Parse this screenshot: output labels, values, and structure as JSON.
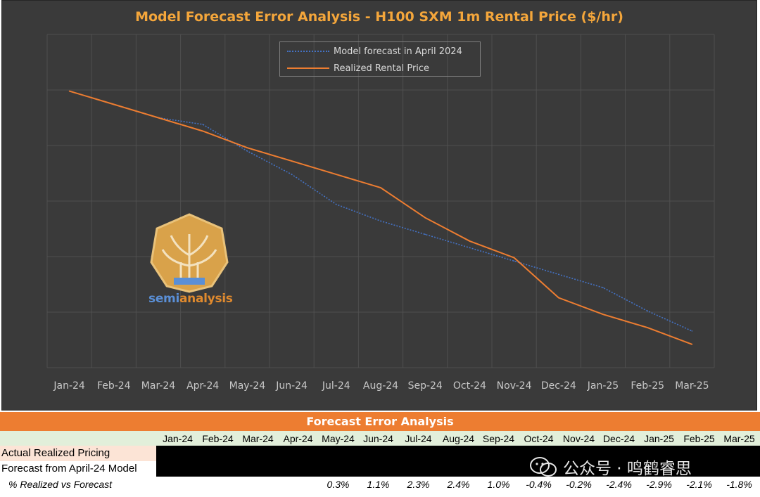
{
  "chart_data": {
    "type": "line",
    "title": "Model Forecast Error Analysis - H100 SXM 1m Rental Price ($/hr)",
    "categories": [
      "Jan-24",
      "Feb-24",
      "Mar-24",
      "Apr-24",
      "May-24",
      "Jun-24",
      "Jul-24",
      "Aug-24",
      "Sep-24",
      "Oct-24",
      "Nov-24",
      "Dec-24",
      "Jan-25",
      "Feb-25",
      "Mar-25"
    ],
    "ylim": [
      0,
      1
    ],
    "grid": true,
    "legend_position": "top-center",
    "series": [
      {
        "name": "Model forecast in April 2024",
        "style": "dotted",
        "color": "#4472c4",
        "values": [
          null,
          null,
          0.75,
          0.73,
          0.65,
          0.58,
          0.49,
          0.44,
          0.4,
          0.36,
          0.32,
          0.28,
          0.24,
          0.17,
          0.11
        ]
      },
      {
        "name": "Realized Rental Price",
        "style": "solid",
        "color": "#ed7d31",
        "values": [
          0.83,
          0.79,
          0.75,
          0.71,
          0.66,
          0.62,
          0.58,
          0.54,
          0.45,
          0.38,
          0.33,
          0.21,
          0.16,
          0.12,
          0.07
        ]
      }
    ]
  },
  "logo": {
    "semi": "semi",
    "analysis": "analysis"
  },
  "table": {
    "banner": "Forecast Error Analysis",
    "months": [
      "Jan-24",
      "Feb-24",
      "Mar-24",
      "Apr-24",
      "May-24",
      "Jun-24",
      "Jul-24",
      "Aug-24",
      "Sep-24",
      "Oct-24",
      "Nov-24",
      "Dec-24",
      "Jan-25",
      "Feb-25",
      "Mar-25"
    ],
    "row_actual": "Actual Realized Pricing",
    "row_forecast": "Forecast from April-24 Model",
    "row_pct": "% Realized vs Forecast",
    "pct_values": [
      "0.3%",
      "1.1%",
      "2.3%",
      "2.4%",
      "1.0%",
      "-0.4%",
      "-0.2%",
      "-2.4%",
      "-2.9%",
      "-2.1%",
      "-1.8%"
    ]
  },
  "watermark": "公众号 · 鸣鹤睿思",
  "colors": {
    "bg": "#3a3a3a",
    "grid": "#4f4f4f",
    "title": "#f4a63b",
    "orange": "#ed7d31",
    "blue": "#4472c4",
    "banner": "#ed7d31",
    "header_row": "#e2efda"
  }
}
